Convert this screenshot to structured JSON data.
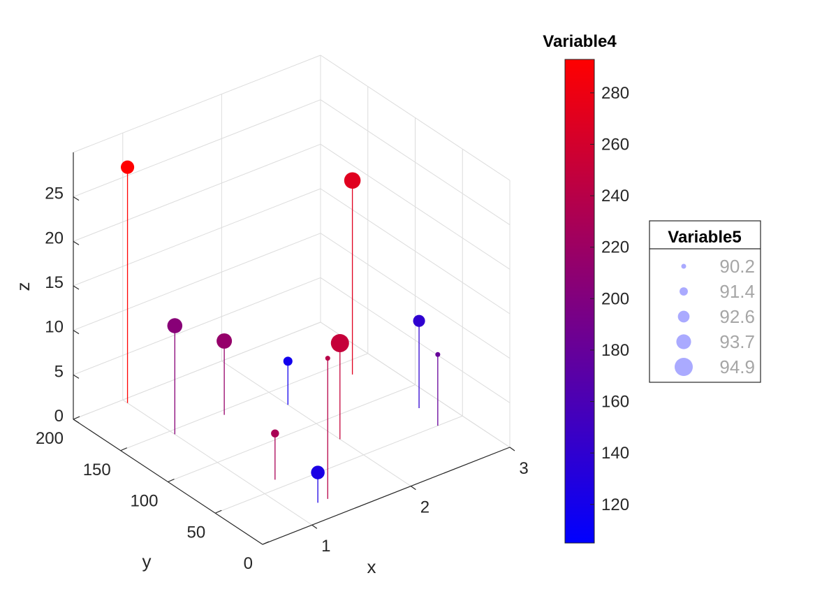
{
  "chart_data": {
    "type": "scatter",
    "subtype": "stem3-bubble",
    "xlabel": "x",
    "ylabel": "y",
    "zlabel": "z",
    "xlim": [
      0.5,
      3.0
    ],
    "ylim": [
      0,
      200
    ],
    "zlim": [
      0,
      30
    ],
    "x_ticks": [
      "1",
      "2",
      "3"
    ],
    "y_ticks": [
      "0",
      "50",
      "100",
      "150",
      "200"
    ],
    "z_ticks": [
      "0",
      "5",
      "10",
      "15",
      "20",
      "25"
    ],
    "grid": true,
    "colorbar": {
      "title": "Variable4",
      "range": [
        105,
        293
      ],
      "ticks": [
        "120",
        "140",
        "160",
        "180",
        "200",
        "220",
        "240",
        "260",
        "280"
      ],
      "colors": [
        "#0000ff",
        "#ff0000"
      ]
    },
    "size_legend": {
      "title": "Variable5",
      "placement": "right",
      "entries": [
        "90.2",
        "91.4",
        "92.6",
        "93.7",
        "94.9"
      ]
    },
    "points": [
      {
        "x": 1.0,
        "y": 195,
        "z": 26.5,
        "color_value": 293,
        "size_value": 93.2
      },
      {
        "x": 1.0,
        "y": 145,
        "z": 12.2,
        "color_value": 205,
        "size_value": 93.8
      },
      {
        "x": 1.5,
        "y": 145,
        "z": 8.3,
        "color_value": 215,
        "size_value": 93.9
      },
      {
        "x": 1.2,
        "y": 60,
        "z": 5.2,
        "color_value": 230,
        "size_value": 91.3
      },
      {
        "x": 1.35,
        "y": 20,
        "z": 15.8,
        "color_value": 240,
        "size_value": 90.2
      },
      {
        "x": 1.25,
        "y": 20,
        "z": 3.4,
        "color_value": 125,
        "size_value": 93.3
      },
      {
        "x": 2.0,
        "y": 130,
        "z": 4.9,
        "color_value": 118,
        "size_value": 91.7
      },
      {
        "x": 2.0,
        "y": 75,
        "z": 10.8,
        "color_value": 250,
        "size_value": 94.9
      },
      {
        "x": 2.7,
        "y": 135,
        "z": 21.8,
        "color_value": 270,
        "size_value": 94.3
      },
      {
        "x": 2.8,
        "y": 75,
        "z": 9.8,
        "color_value": 140,
        "size_value": 92.7
      },
      {
        "x": 2.75,
        "y": 50,
        "z": 8.0,
        "color_value": 180,
        "size_value": 90.2
      }
    ]
  }
}
